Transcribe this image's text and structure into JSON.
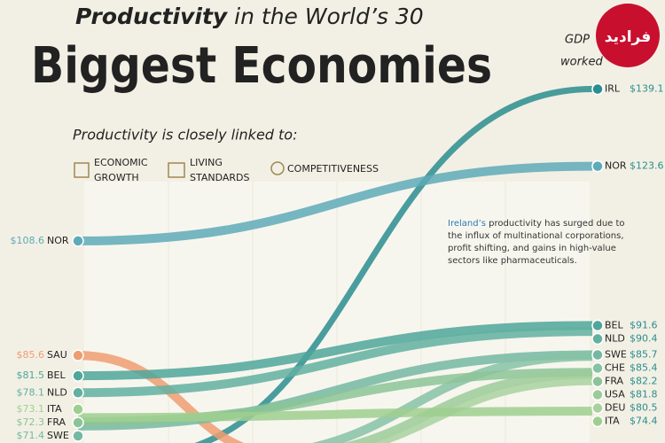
{
  "chart_data": {
    "type": "slope",
    "title_bold": "Productivity",
    "title_rest": " in the World’s 30",
    "headline": "Biggest Economies",
    "subtitle": "Productivity is closely linked to:",
    "icons": [
      [
        "ECONOMIC",
        "GROWTH"
      ],
      [
        "LIVING",
        "STANDARDS"
      ],
      [
        "COMPETITIVENESS"
      ]
    ],
    "header_right": [
      "GDP",
      "worked"
    ],
    "logo": "فرادید",
    "annotation_highlight": "Ireland’s",
    "annotation_rest": " productivity has surged due to the influx of multinational corporations, profit shifting, and gains in high-value sectors like pharmaceuticals.",
    "ylim": [
      68,
      157
    ],
    "series": [
      {
        "name": "IRL",
        "color": "#2b8d8f",
        "values": [
          null,
          139.1
        ],
        "value_labels": [
          null,
          "$139.1"
        ]
      },
      {
        "name": "NOR",
        "color": "#5eaab8",
        "values": [
          108.6,
          123.6
        ],
        "value_labels": [
          "$108.6",
          "$123.6"
        ]
      },
      {
        "name": "SAU",
        "color": "#ee9d72",
        "values": [
          85.6,
          null
        ],
        "value_labels": [
          "$85.6",
          null
        ]
      },
      {
        "name": "BEL",
        "color": "#4fa69a",
        "values": [
          81.5,
          91.6
        ],
        "value_labels": [
          "$81.5",
          "$91.6"
        ]
      },
      {
        "name": "NLD",
        "color": "#62b0a0",
        "values": [
          78.1,
          90.4
        ],
        "value_labels": [
          "$78.1",
          "$90.4"
        ]
      },
      {
        "name": "SWE",
        "color": "#74b8a2",
        "values": [
          71.4,
          85.7
        ],
        "value_labels": [
          "$71.4",
          "$85.7"
        ]
      },
      {
        "name": "CHE",
        "color": "#86c2a4",
        "values": [
          null,
          85.4
        ],
        "value_labels": [
          null,
          "$85.4"
        ]
      },
      {
        "name": "FRA",
        "color": "#8cc497",
        "values": [
          72.3,
          82.2
        ],
        "value_labels": [
          "$72.3",
          "$82.2"
        ]
      },
      {
        "name": "USA",
        "color": "#9ccb9a",
        "values": [
          null,
          81.8
        ],
        "value_labels": [
          null,
          "$81.8"
        ]
      },
      {
        "name": "DEU",
        "color": "#a9d1a0",
        "values": [
          null,
          80.5
        ],
        "value_labels": [
          null,
          "$80.5"
        ]
      },
      {
        "name": "ITA",
        "color": "#9fcf8f",
        "values": [
          73.1,
          74.4
        ],
        "value_labels": [
          "$73.1",
          "$74.4"
        ]
      }
    ]
  }
}
